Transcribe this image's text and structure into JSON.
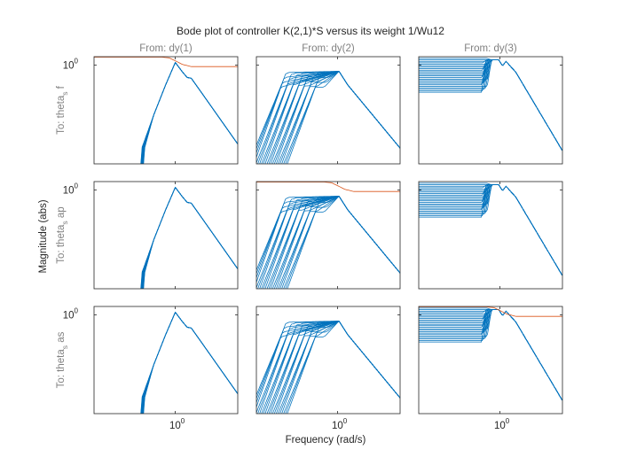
{
  "chart_data": {
    "type": "line",
    "title": "Bode plot of controller K(2,1)*S versus its weight 1/Wu12",
    "xlabel": "Frequency  (rad/s)",
    "ylabel": "Magnitude (abs)",
    "x_scale": "log",
    "y_scale": "log",
    "xlim": [
      0.05,
      10
    ],
    "ylim": [
      0.001,
      1.8
    ],
    "x_tick_label": {
      "base": "10",
      "exp": "0"
    },
    "y_tick_label": {
      "base": "10",
      "exp": "0"
    },
    "columns": [
      "From: dy(1)",
      "From: dy(2)",
      "From: dy(3)"
    ],
    "rows": [
      {
        "text": "To: theta",
        "sub": "s",
        "tail": " f"
      },
      {
        "text": "To: theta",
        "sub": "s",
        "tail": " ap"
      },
      {
        "text": "To: theta",
        "sub": "s",
        "tail": " as"
      }
    ],
    "colors": {
      "controller": "#0072BD",
      "weight": "#D95319",
      "axes": "#262626",
      "label": "#808080"
    },
    "weight_curves": [
      {
        "row": 0,
        "col": 0,
        "x": [
          0.05,
          0.6,
          0.8,
          1.0,
          1.3,
          1.8,
          10
        ],
        "y": [
          1.75,
          1.75,
          1.65,
          1.35,
          1.05,
          0.9,
          0.9
        ]
      },
      {
        "row": 1,
        "col": 1,
        "x": [
          0.05,
          0.6,
          0.8,
          1.0,
          1.3,
          1.8,
          10
        ],
        "y": [
          1.75,
          1.75,
          1.65,
          1.35,
          1.05,
          0.9,
          0.9
        ]
      },
      {
        "row": 2,
        "col": 2,
        "x": [
          0.05,
          0.6,
          0.8,
          1.0,
          1.3,
          1.8,
          10
        ],
        "y": [
          1.75,
          1.75,
          1.65,
          1.35,
          1.05,
          0.9,
          0.9
        ]
      }
    ],
    "controller_families": [
      {
        "col": 0,
        "count": 16,
        "peak_x": 1.0,
        "peak_y": 1.2,
        "low_cutoff_x": [
          0.28,
          0.31
        ],
        "shoulder_x": 1.8,
        "shoulder_y": 0.4,
        "end_y": 0.004
      },
      {
        "col": 1,
        "count": 22,
        "plateau_x": [
          0.12,
          0.5
        ],
        "plateau_y": [
          0.2,
          0.55
        ],
        "rise_end_x": [
          0.13,
          0.75
        ],
        "peak_x": 1.05,
        "peak_y": 0.65,
        "end_y": 0.003
      },
      {
        "col": 2,
        "count": 24,
        "low_y": [
          0.15,
          1.6
        ],
        "step_x": [
          0.55,
          0.7
        ],
        "high_y": 1.45,
        "dip_x": 1.1,
        "shoulder_x": 1.8,
        "end_y": 0.0025
      }
    ]
  }
}
